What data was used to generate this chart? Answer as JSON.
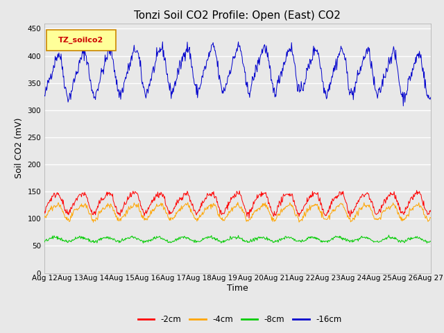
{
  "title": "Tonzi Soil CO2 Profile: Open (East) CO2",
  "ylabel": "Soil CO2 (mV)",
  "xlabel": "Time",
  "legend_label": "TZ_soilco2",
  "series_labels": [
    "-2cm",
    "-4cm",
    "-8cm",
    "-16cm"
  ],
  "series_colors": [
    "#ff0000",
    "#ffa500",
    "#00cc00",
    "#0000cc"
  ],
  "ylim": [
    0,
    460
  ],
  "yticks": [
    0,
    50,
    100,
    150,
    200,
    250,
    300,
    350,
    400,
    450
  ],
  "xtick_labels": [
    "Aug 12",
    "Aug 13",
    "Aug 14",
    "Aug 15",
    "Aug 16",
    "Aug 17",
    "Aug 18",
    "Aug 19",
    "Aug 20",
    "Aug 21",
    "Aug 22",
    "Aug 23",
    "Aug 24",
    "Aug 25",
    "Aug 26",
    "Aug 27"
  ],
  "bg_color": "#e8e8e8",
  "plot_bg_color": "#e8e8e8",
  "grid_color": "#ffffff",
  "legend_box_color": "#ffff99",
  "legend_box_edge": "#cc8800",
  "title_fontsize": 11,
  "axis_fontsize": 9,
  "tick_fontsize": 7.5
}
